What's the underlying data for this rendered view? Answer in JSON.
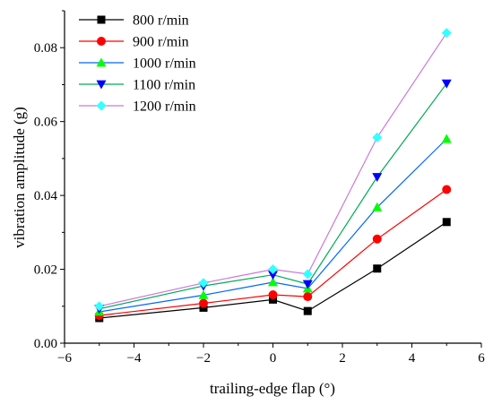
{
  "chart_data": {
    "type": "line",
    "xlabel": "trailing-edge flap (°)",
    "ylabel": "vibration amplitude (g)",
    "xlim": [
      -6,
      6
    ],
    "ylim": [
      0,
      0.09
    ],
    "x_ticks": [
      "−6",
      "−4",
      "−2",
      "0",
      "2",
      "4",
      "6"
    ],
    "y_ticks": [
      "0.00",
      "0.02",
      "0.04",
      "0.06",
      "0.08"
    ],
    "grid": false,
    "legend_position": "top-left",
    "x": [
      -5,
      -2,
      0,
      1,
      3,
      5
    ],
    "series": [
      {
        "name": "800 r/min",
        "color": "#000000",
        "marker": "square",
        "values": [
          0.0068,
          0.0096,
          0.0118,
          0.0087,
          0.0202,
          0.0328
        ]
      },
      {
        "name": "900 r/min",
        "color": "#ff0000",
        "marker": "circle",
        "values": [
          0.0075,
          0.0108,
          0.0131,
          0.0126,
          0.0282,
          0.0416
        ]
      },
      {
        "name": "1000 r/min",
        "color": "#0066ff",
        "marker": "triangle-up",
        "values": [
          0.0085,
          0.013,
          0.0165,
          0.0148,
          0.0368,
          0.0553
        ]
      },
      {
        "name": "1100 r/min",
        "color": "#00aa55",
        "marker": "triangle-down",
        "values": [
          0.0093,
          0.0155,
          0.0185,
          0.016,
          0.045,
          0.0703
        ]
      },
      {
        "name": "1200 r/min",
        "color": "#cc77dd",
        "marker": "diamond",
        "values": [
          0.01,
          0.0163,
          0.02,
          0.0187,
          0.0557,
          0.084
        ]
      }
    ],
    "marker_colors": {
      "800 r/min": "#000000",
      "900 r/min": "#ff0000",
      "1000 r/min": "#00ff00",
      "1100 r/min": "#0000ff",
      "1200 r/min": "#33ffff"
    }
  }
}
